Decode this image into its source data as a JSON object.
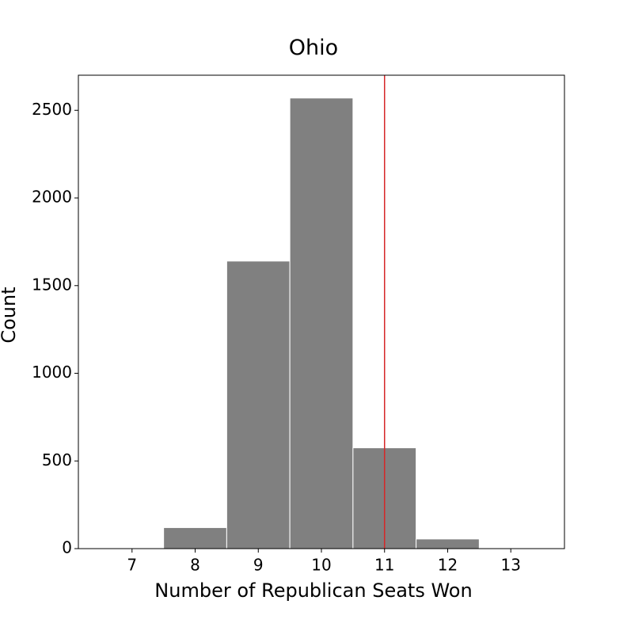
{
  "chart_data": {
    "type": "bar",
    "title": "Ohio",
    "xlabel": "Number of Republican Seats Won",
    "ylabel": "Count",
    "categories": [
      7,
      8,
      9,
      10,
      11,
      12,
      13
    ],
    "values": [
      3,
      120,
      1640,
      2570,
      575,
      55,
      3
    ],
    "xlim": [
      6.15,
      13.85
    ],
    "ylim": [
      0,
      2700
    ],
    "x_ticks": [
      7,
      8,
      9,
      10,
      11,
      12,
      13
    ],
    "y_ticks": [
      0,
      500,
      1000,
      1500,
      2000,
      2500
    ],
    "reference_line": {
      "x": 11,
      "color": "#d62728"
    },
    "bar_color": "#808080",
    "bar_edge_color": "#ffffff",
    "grid": false,
    "legend": "none"
  }
}
